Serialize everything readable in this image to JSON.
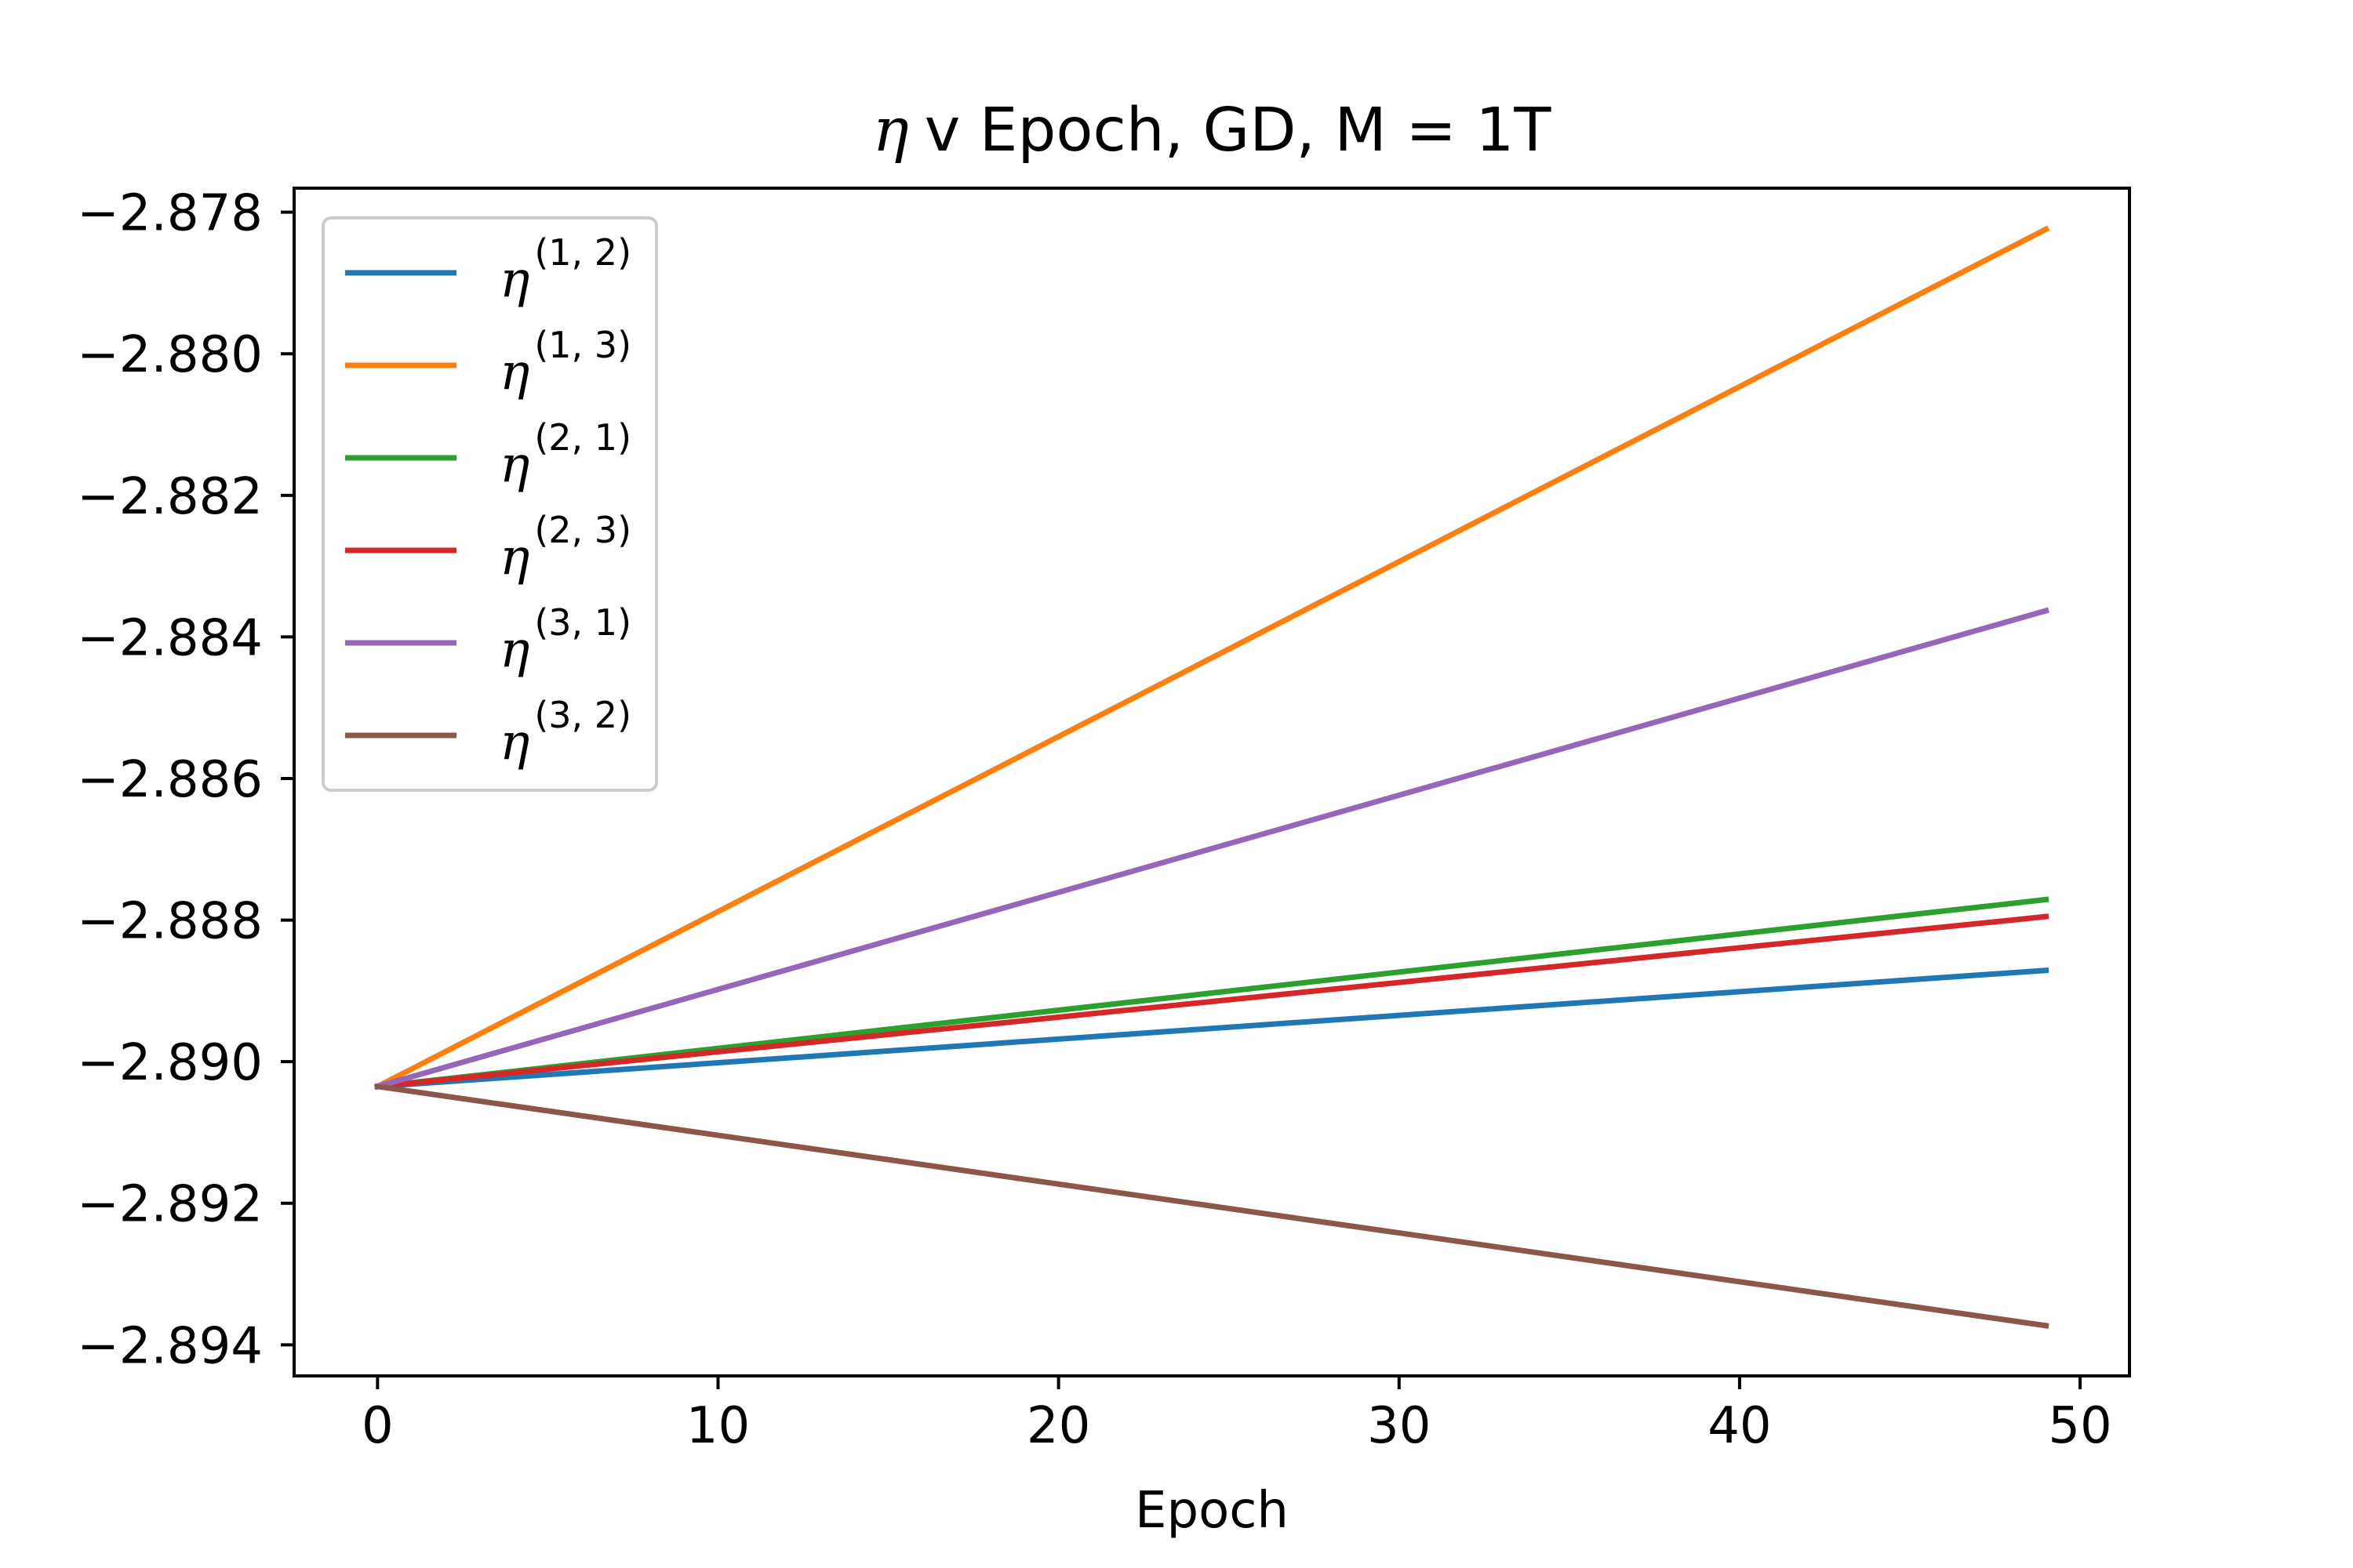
{
  "chart_data": {
    "type": "line",
    "title": "v Epoch, GD, M = 1T",
    "title_symbol": "η",
    "xlabel": "Epoch",
    "ylabel": "",
    "xlim": [
      -2.45,
      51.45
    ],
    "ylim": [
      -2.8944395,
      -2.8776605
    ],
    "xticks": [
      0,
      10,
      20,
      30,
      40,
      50
    ],
    "xtick_labels": [
      "0",
      "10",
      "20",
      "30",
      "40",
      "50"
    ],
    "yticks": [
      -2.878,
      -2.88,
      -2.882,
      -2.884,
      -2.886,
      -2.888,
      -2.89,
      -2.892,
      -2.894
    ],
    "ytick_labels": [
      "−2.878",
      "−2.880",
      "−2.882",
      "−2.884",
      "−2.886",
      "−2.888",
      "−2.890",
      "−2.892",
      "−2.894"
    ],
    "grid": false,
    "legend_position": "top-left",
    "series": [
      {
        "name": "(1, 2)",
        "symbol": "η",
        "color": "#1f77b4",
        "x": [
          0,
          49
        ],
        "y": [
          -2.89035,
          -2.88871
        ]
      },
      {
        "name": "(1, 3)",
        "symbol": "η",
        "color": "#ff7f0e",
        "x": [
          0,
          49
        ],
        "y": [
          -2.89035,
          -2.87824
        ]
      },
      {
        "name": "(2, 1)",
        "symbol": "η",
        "color": "#2ca02c",
        "x": [
          0,
          49
        ],
        "y": [
          -2.89035,
          -2.88771
        ]
      },
      {
        "name": "(2, 3)",
        "symbol": "η",
        "color": "#d62728",
        "x": [
          0,
          49
        ],
        "y": [
          -2.89035,
          -2.88795
        ]
      },
      {
        "name": "(3, 1)",
        "symbol": "η",
        "color": "#9467bd",
        "x": [
          0,
          49
        ],
        "y": [
          -2.89035,
          -2.88363
        ]
      },
      {
        "name": "(3, 2)",
        "symbol": "η",
        "color": "#8c564b",
        "x": [
          0,
          49
        ],
        "y": [
          -2.89035,
          -2.89373
        ]
      }
    ]
  }
}
